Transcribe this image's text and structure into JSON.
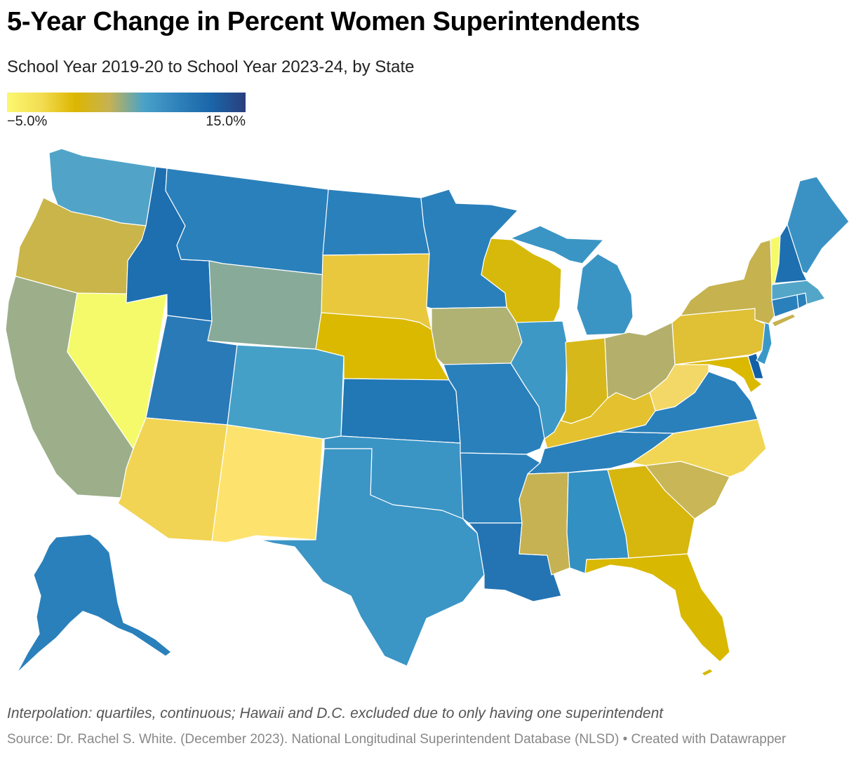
{
  "title": "5-Year Change in Percent Women Superintendents",
  "subtitle": "School Year 2019-20 to School Year 2023-24, by State",
  "legend": {
    "min_label": "−5.0%",
    "max_label": "15.0%",
    "stops": [
      "#fbf871",
      "#f3dd52",
      "#dcb600",
      "#c6b253",
      "#4aa2c9",
      "#2f82bb",
      "#1a65a8",
      "#2a3f7d"
    ]
  },
  "note": "Interpolation: quartiles, continuous; Hawaii and D.C. excluded due to only having one superintendent",
  "source": "Source: Dr. Rachel S. White. (December 2023). National Longitudinal Superintendent Database (NLSD) • Created with Datawrapper",
  "region_colors": {
    "WA": "#51a4c8",
    "OR": "#c9b54a",
    "CA": "#9caf8a",
    "NV": "#f5fa6a",
    "ID": "#1e6fb0",
    "MT": "#2a80bb",
    "WY": "#88aa99",
    "UT": "#2a7ab8",
    "CO": "#45a0c8",
    "AZ": "#f1d454",
    "NM": "#fde36e",
    "ND": "#2a80bb",
    "SD": "#e9c83e",
    "NE": "#dab900",
    "KS": "#2277b5",
    "OK": "#3a95c5",
    "TX": "#3b95c5",
    "MN": "#2a80bb",
    "IA": "#b0b273",
    "MO": "#2a80bb",
    "AR": "#2a80bb",
    "LA": "#2474b3",
    "WI": "#d7b90b",
    "IL": "#3d98c6",
    "MI": "#3a95c5",
    "IN": "#d6b81a",
    "OH": "#b4b06c",
    "KY": "#e4c12e",
    "TN": "#2a80bb",
    "MS": "#c6b253",
    "AL": "#3390c3",
    "GA": "#d7b60e",
    "FL": "#d8b800",
    "SC": "#c8b657",
    "NC": "#f1d656",
    "VA": "#2a80bb",
    "WV": "#f3d867",
    "MD": "#dab900",
    "DE": "#1260a7",
    "PA": "#e0c034",
    "NJ": "#3a98c8",
    "NY": "#c6b24f",
    "CT": "#2a80bb",
    "RI": "#2a80bb",
    "MA": "#53a6c8",
    "VT": "#f6fa68",
    "NH": "#1d6fb0",
    "ME": "#3a92c4",
    "AK": "#2a80bb"
  }
}
